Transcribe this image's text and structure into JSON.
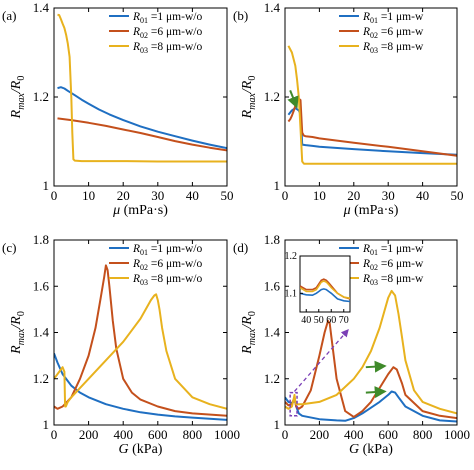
{
  "colors": {
    "R01": "#1f6fc2",
    "R02": "#c4501c",
    "R03": "#e8b21e",
    "arrow": "#3f8a2a",
    "dashed": "#7b3fb6",
    "axis": "#000000"
  },
  "chart_data": [
    {
      "panel": "(a)",
      "type": "line",
      "xlabel_parts": [
        "μ",
        " (mPa·s)"
      ],
      "ylabel_parts": [
        "R",
        "max",
        "/R",
        "0"
      ],
      "xlim": [
        0,
        50
      ],
      "ylim": [
        1,
        1.4
      ],
      "xticks": [
        0,
        10,
        20,
        30,
        40,
        50
      ],
      "yticks": [
        1,
        1.2,
        1.4
      ],
      "xtick_labels": [
        "0",
        "10",
        "20",
        "30",
        "40",
        "50"
      ],
      "ytick_labels": [
        "1",
        "1.2",
        "1.4"
      ],
      "legend": [
        "=1 μm-w/o",
        "=6 μm-w/o",
        "=8 μm-w/o"
      ],
      "legend_subs": [
        "01",
        "02",
        "03"
      ],
      "series": [
        {
          "key": "R01",
          "x": [
            1,
            2,
            3,
            4,
            6,
            8,
            10,
            13,
            16,
            20,
            25,
            30,
            35,
            40,
            45,
            50
          ],
          "y": [
            1.22,
            1.222,
            1.219,
            1.214,
            1.204,
            1.194,
            1.185,
            1.172,
            1.161,
            1.148,
            1.134,
            1.122,
            1.112,
            1.102,
            1.093,
            1.085
          ]
        },
        {
          "key": "R02",
          "x": [
            1,
            5,
            10,
            15,
            20,
            25,
            30,
            35,
            40,
            45,
            50
          ],
          "y": [
            1.152,
            1.148,
            1.142,
            1.135,
            1.127,
            1.119,
            1.11,
            1.101,
            1.093,
            1.086,
            1.08
          ]
        },
        {
          "key": "R03",
          "x": [
            1,
            1.5,
            2,
            2.5,
            3,
            3.5,
            4,
            4.5,
            5,
            5.3,
            5.6,
            6,
            8,
            10,
            20,
            30,
            40,
            50
          ],
          "y": [
            1.385,
            1.384,
            1.375,
            1.365,
            1.355,
            1.34,
            1.32,
            1.29,
            1.2,
            1.12,
            1.06,
            1.057,
            1.056,
            1.056,
            1.056,
            1.055,
            1.055,
            1.055
          ]
        }
      ]
    },
    {
      "panel": "(b)",
      "type": "line",
      "xlabel_parts": [
        "μ",
        " (mPa·s)"
      ],
      "ylabel_parts": [
        "R",
        "max",
        "/R",
        "0"
      ],
      "xlim": [
        0,
        50
      ],
      "ylim": [
        1,
        1.4
      ],
      "xticks": [
        0,
        10,
        20,
        30,
        40,
        50
      ],
      "yticks": [
        1,
        1.2,
        1.4
      ],
      "xtick_labels": [
        "0",
        "10",
        "20",
        "30",
        "40",
        "50"
      ],
      "ytick_labels": [
        "1",
        "1.2",
        "1.4"
      ],
      "legend": [
        "=1 μm-w",
        "=6 μm-w",
        "=8 μm-w"
      ],
      "legend_subs": [
        "01",
        "02",
        "03"
      ],
      "series": [
        {
          "key": "R01",
          "x": [
            1,
            2,
            3,
            4,
            4.6,
            5,
            6,
            8,
            10,
            20,
            30,
            40,
            50
          ],
          "y": [
            1.16,
            1.17,
            1.175,
            1.17,
            1.16,
            1.093,
            1.092,
            1.09,
            1.088,
            1.083,
            1.078,
            1.074,
            1.07
          ]
        },
        {
          "key": "R02",
          "x": [
            1,
            1.5,
            2,
            2.5,
            3,
            3.5,
            4,
            4.5,
            5,
            5.5,
            6,
            8,
            10,
            20,
            30,
            40,
            50
          ],
          "y": [
            1.145,
            1.15,
            1.158,
            1.168,
            1.18,
            1.19,
            1.196,
            1.193,
            1.12,
            1.113,
            1.112,
            1.11,
            1.107,
            1.097,
            1.088,
            1.078,
            1.068
          ]
        },
        {
          "key": "R03",
          "x": [
            1,
            2,
            3,
            3.5,
            4,
            4.5,
            5,
            5.5,
            6,
            8,
            10,
            20,
            30,
            40,
            50
          ],
          "y": [
            1.315,
            1.3,
            1.27,
            1.24,
            1.2,
            1.13,
            1.055,
            1.05,
            1.05,
            1.05,
            1.05,
            1.05,
            1.05,
            1.05,
            1.05
          ]
        }
      ],
      "annotations": [
        {
          "type": "arrow",
          "color": "arrow",
          "from": [
            1.5,
            1.215
          ],
          "to": [
            3.4,
            1.178
          ]
        }
      ]
    },
    {
      "panel": "(c)",
      "type": "line",
      "xlabel_parts": [
        "G",
        " (kPa)"
      ],
      "ylabel_parts": [
        "R",
        "max",
        "/R",
        "0"
      ],
      "xlim": [
        0,
        1000
      ],
      "ylim": [
        1,
        1.8
      ],
      "xticks": [
        0,
        200,
        400,
        600,
        800,
        1000
      ],
      "yticks": [
        1,
        1.2,
        1.4,
        1.6,
        1.8
      ],
      "xtick_labels": [
        "0",
        "200",
        "400",
        "600",
        "800",
        "1000"
      ],
      "ytick_labels": [
        "1",
        "1.2",
        "1.4",
        "1.6",
        "1.8"
      ],
      "legend": [
        "=1 μm-w/o",
        "=6 μm-w/o",
        "=8 μm-w/o"
      ],
      "legend_subs": [
        "01",
        "02",
        "03"
      ],
      "series": [
        {
          "key": "R01",
          "x": [
            0,
            20,
            50,
            100,
            150,
            200,
            300,
            400,
            500,
            600,
            700,
            800,
            900,
            1000
          ],
          "y": [
            1.31,
            1.27,
            1.22,
            1.17,
            1.14,
            1.12,
            1.09,
            1.07,
            1.055,
            1.045,
            1.037,
            1.032,
            1.027,
            1.022
          ]
        },
        {
          "key": "R02",
          "x": [
            0,
            20,
            50,
            100,
            150,
            200,
            240,
            270,
            290,
            300,
            310,
            320,
            340,
            360,
            400,
            450,
            500,
            600,
            700,
            800,
            1000
          ],
          "y": [
            1.08,
            1.07,
            1.08,
            1.12,
            1.2,
            1.3,
            1.42,
            1.55,
            1.64,
            1.69,
            1.67,
            1.6,
            1.45,
            1.33,
            1.2,
            1.14,
            1.11,
            1.08,
            1.06,
            1.05,
            1.04
          ]
        },
        {
          "key": "R03",
          "x": [
            0,
            40,
            50,
            55,
            60,
            64,
            68,
            80,
            100,
            200,
            300,
            400,
            450,
            500,
            530,
            560,
            580,
            590,
            600,
            610,
            625,
            650,
            700,
            800,
            900,
            1000
          ],
          "y": [
            1.2,
            1.24,
            1.25,
            1.24,
            1.23,
            1.08,
            1.08,
            1.1,
            1.12,
            1.2,
            1.28,
            1.36,
            1.41,
            1.46,
            1.5,
            1.54,
            1.56,
            1.565,
            1.54,
            1.5,
            1.42,
            1.32,
            1.2,
            1.12,
            1.09,
            1.07
          ]
        }
      ]
    },
    {
      "panel": "(d)",
      "type": "line",
      "xlabel_parts": [
        "G",
        " (kPa)"
      ],
      "ylabel_parts": [
        "R",
        "max",
        "/R",
        "0"
      ],
      "xlim": [
        0,
        1000
      ],
      "ylim": [
        1,
        1.8
      ],
      "xticks": [
        0,
        200,
        400,
        600,
        800,
        1000
      ],
      "yticks": [
        1,
        1.2,
        1.4,
        1.6,
        1.8
      ],
      "xtick_labels": [
        "0",
        "200",
        "400",
        "600",
        "800",
        "1000"
      ],
      "ytick_labels": [
        "1",
        "1.2",
        "1.4",
        "1.6",
        "1.8"
      ],
      "legend": [
        "=1 μm-w",
        "=6 μm-w",
        "=8 μm-w"
      ],
      "legend_subs": [
        "01",
        "02",
        "03"
      ],
      "series": [
        {
          "key": "R01",
          "x": [
            0,
            20,
            40,
            50,
            55,
            60,
            65,
            80,
            100,
            200,
            300,
            350,
            400,
            450,
            500,
            550,
            600,
            620,
            640,
            660,
            700,
            800,
            900,
            1000
          ],
          "y": [
            1.12,
            1.1,
            1.095,
            1.1,
            1.11,
            1.1,
            1.08,
            1.05,
            1.04,
            1.025,
            1.02,
            1.018,
            1.03,
            1.05,
            1.075,
            1.1,
            1.13,
            1.145,
            1.14,
            1.12,
            1.08,
            1.04,
            1.02,
            1.015
          ]
        },
        {
          "key": "R02",
          "x": [
            0,
            20,
            40,
            50,
            55,
            60,
            65,
            80,
            100,
            150,
            200,
            230,
            250,
            260,
            270,
            300,
            350,
            400,
            450,
            500,
            550,
            600,
            630,
            650,
            680,
            700,
            800,
            900,
            1000
          ],
          "y": [
            1.1,
            1.085,
            1.09,
            1.11,
            1.12,
            1.1,
            1.08,
            1.07,
            1.08,
            1.15,
            1.3,
            1.4,
            1.45,
            1.44,
            1.38,
            1.2,
            1.06,
            1.035,
            1.06,
            1.1,
            1.16,
            1.22,
            1.25,
            1.24,
            1.18,
            1.13,
            1.06,
            1.04,
            1.03
          ]
        },
        {
          "key": "R03",
          "x": [
            0,
            20,
            40,
            50,
            55,
            60,
            65,
            100,
            200,
            300,
            400,
            450,
            500,
            550,
            600,
            620,
            640,
            660,
            680,
            700,
            750,
            800,
            900,
            1000
          ],
          "y": [
            1.08,
            1.07,
            1.08,
            1.11,
            1.13,
            1.1,
            1.09,
            1.09,
            1.1,
            1.13,
            1.2,
            1.25,
            1.32,
            1.42,
            1.55,
            1.58,
            1.56,
            1.48,
            1.38,
            1.28,
            1.15,
            1.1,
            1.07,
            1.05
          ]
        }
      ],
      "annotations": [
        {
          "type": "arrow",
          "color": "arrow",
          "from": [
            470,
            1.25
          ],
          "to": [
            580,
            1.255
          ]
        },
        {
          "type": "arrow",
          "color": "arrow",
          "from": [
            470,
            1.14
          ],
          "to": [
            580,
            1.145
          ]
        }
      ],
      "inset": {
        "xlim": [
          35,
          75
        ],
        "ylim": [
          1.05,
          1.2
        ],
        "xticks": [
          40,
          50,
          60,
          70
        ],
        "yticks": [
          1.1,
          1.2
        ],
        "xtick_labels": [
          "40",
          "50",
          "60",
          "70"
        ],
        "ytick_labels": [
          "1.1",
          "1.2"
        ],
        "series": [
          {
            "key": "R01",
            "x": [
              35,
              40,
              45,
              48,
              50,
              52,
              54,
              56,
              58,
              60,
              65,
              70,
              75
            ],
            "y": [
              1.1,
              1.096,
              1.095,
              1.1,
              1.105,
              1.11,
              1.112,
              1.11,
              1.105,
              1.1,
              1.085,
              1.08,
              1.078
            ]
          },
          {
            "key": "R02",
            "x": [
              35,
              40,
              45,
              48,
              50,
              52,
              54,
              56,
              58,
              60,
              65,
              70,
              75
            ],
            "y": [
              1.12,
              1.11,
              1.11,
              1.115,
              1.125,
              1.135,
              1.138,
              1.135,
              1.128,
              1.12,
              1.1,
              1.09,
              1.085
            ]
          },
          {
            "key": "R03",
            "x": [
              35,
              40,
              45,
              48,
              50,
              52,
              54,
              56,
              58,
              60,
              65,
              70,
              75
            ],
            "y": [
              1.115,
              1.105,
              1.105,
              1.11,
              1.12,
              1.13,
              1.133,
              1.13,
              1.123,
              1.115,
              1.1,
              1.09,
              1.087
            ]
          }
        ]
      }
    }
  ]
}
